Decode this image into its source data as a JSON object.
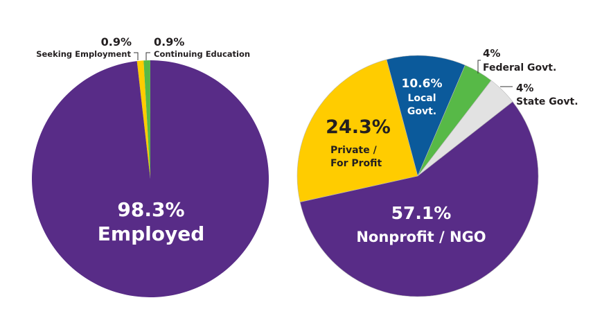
{
  "chart_data": [
    {
      "type": "pie",
      "title": "",
      "slices": [
        {
          "label": "Seeking Employment",
          "value": 0.9,
          "display": "0.9%",
          "color": "#ffcc00"
        },
        {
          "label": "Continuing Education",
          "value": 0.9,
          "display": "0.9%",
          "color": "#57b947"
        },
        {
          "label": "Employed",
          "value": 98.3,
          "display": "98.3%",
          "color": "#582c87"
        }
      ]
    },
    {
      "type": "pie",
      "title": "",
      "slices": [
        {
          "label": "Local Govt.",
          "value": 10.6,
          "display": "10.6%",
          "color": "#0b5a9b"
        },
        {
          "label": "Federal Govt.",
          "value": 4,
          "display": "4%",
          "color": "#57b947"
        },
        {
          "label": "State Govt.",
          "value": 4,
          "display": "4%",
          "color": "#e2e2e2"
        },
        {
          "label": "Nonprofit / NGO",
          "value": 57.1,
          "display": "57.1%",
          "color": "#582c87"
        },
        {
          "label": "Private / For Profit",
          "value": 24.3,
          "display": "24.3%",
          "color": "#ffcc00"
        }
      ]
    }
  ],
  "labels": {
    "left": {
      "seeking_pct": "0.9%",
      "seeking_name": "Seeking Employment",
      "continuing_pct": "0.9%",
      "continuing_name": "Continuing Education",
      "employed_pct": "98.3%",
      "employed_name": "Employed"
    },
    "right": {
      "local_pct": "10.6%",
      "local_name_1": "Local",
      "local_name_2": "Govt.",
      "federal_pct": "4%",
      "federal_name": "Federal Govt.",
      "state_pct": "4%",
      "state_name": "State Govt.",
      "private_pct": "24.3%",
      "private_name_1": "Private /",
      "private_name_2": "For Profit",
      "nonprofit_pct": "57.1%",
      "nonprofit_name": "Nonprofit / NGO"
    }
  }
}
